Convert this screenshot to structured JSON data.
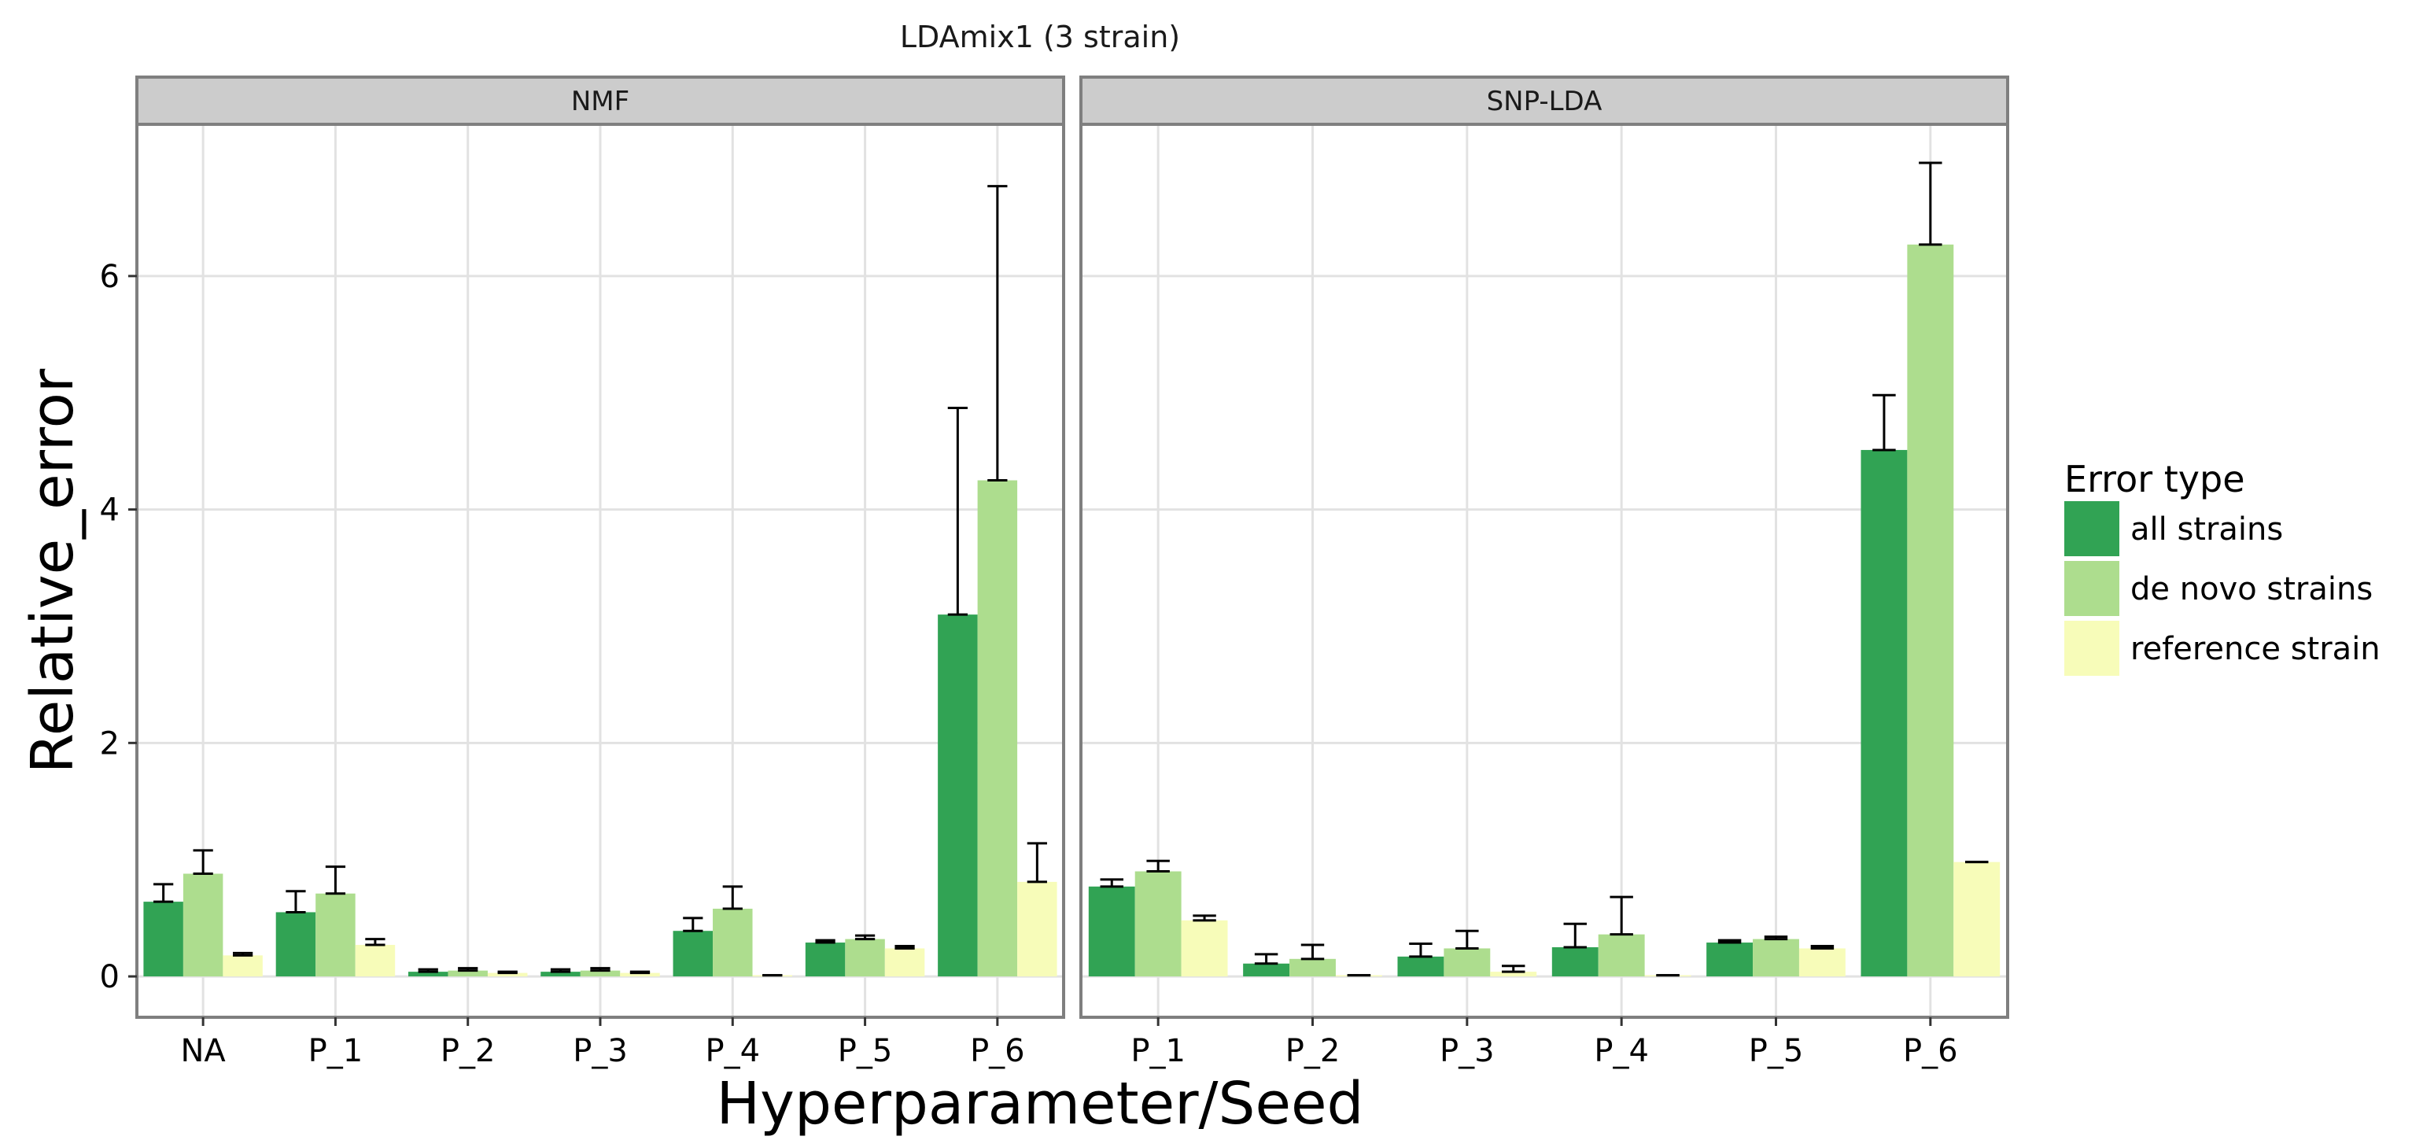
{
  "chart_data": {
    "type": "bar",
    "title": "LDAmix1 (3 strain)",
    "xlabel": "Hyperparameter/Seed",
    "ylabel": "Relative_error",
    "ylim": [
      -0.35,
      7.3
    ],
    "yticks": [
      0,
      2,
      4,
      6
    ],
    "grid": true,
    "legend": {
      "title": "Error type",
      "position": "right",
      "entries": [
        "all strains",
        "de novo strains",
        "reference strain"
      ]
    },
    "colors": {
      "all strains": "#31a354",
      "de novo strains": "#addd8e",
      "reference strain": "#f7fcb9"
    },
    "panels": [
      {
        "facet": "NMF",
        "categories": [
          "NA",
          "P_1",
          "P_2",
          "P_3",
          "P_4",
          "P_5",
          "P_6"
        ],
        "series": [
          {
            "name": "all strains",
            "values": [
              0.64,
              0.55,
              0.04,
              0.04,
              0.39,
              0.29,
              3.1
            ],
            "error_upper": [
              0.79,
              0.73,
              0.06,
              0.06,
              0.5,
              0.31,
              4.87
            ]
          },
          {
            "name": "de novo strains",
            "values": [
              0.88,
              0.71,
              0.05,
              0.05,
              0.58,
              0.32,
              4.25
            ],
            "error_upper": [
              1.08,
              0.94,
              0.07,
              0.07,
              0.77,
              0.35,
              6.77
            ]
          },
          {
            "name": "reference strain",
            "values": [
              0.18,
              0.27,
              0.03,
              0.03,
              0.01,
              0.24,
              0.81
            ],
            "error_upper": [
              0.2,
              0.32,
              0.04,
              0.04,
              0.01,
              0.26,
              1.14
            ]
          }
        ]
      },
      {
        "facet": "SNP-LDA",
        "categories": [
          "P_1",
          "P_2",
          "P_3",
          "P_4",
          "P_5",
          "P_6"
        ],
        "series": [
          {
            "name": "all strains",
            "values": [
              0.77,
              0.11,
              0.17,
              0.25,
              0.29,
              4.51
            ],
            "error_upper": [
              0.83,
              0.19,
              0.28,
              0.45,
              0.31,
              4.98
            ]
          },
          {
            "name": "de novo strains",
            "values": [
              0.9,
              0.15,
              0.24,
              0.36,
              0.32,
              6.27
            ],
            "error_upper": [
              0.99,
              0.27,
              0.39,
              0.68,
              0.34,
              6.97
            ]
          },
          {
            "name": "reference strain",
            "values": [
              0.48,
              0.01,
              0.04,
              0.01,
              0.24,
              0.98
            ],
            "error_upper": [
              0.52,
              0.01,
              0.09,
              0.01,
              0.26,
              0.98
            ]
          }
        ]
      }
    ]
  }
}
